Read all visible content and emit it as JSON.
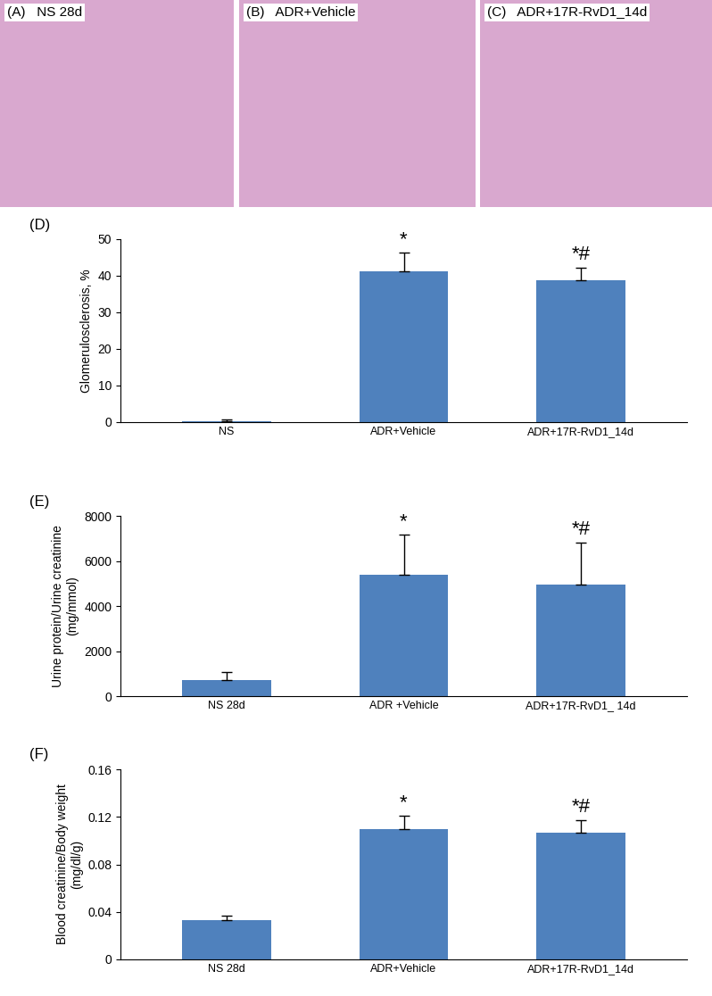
{
  "images": [
    {
      "panel": "(A)",
      "title": "NS 28d"
    },
    {
      "panel": "(B)",
      "title": "ADR+Vehicle"
    },
    {
      "panel": "(C)",
      "title": "ADR+17R-RvD1_14d"
    }
  ],
  "chart_data": [
    {
      "type": "bar",
      "panel": "(D)",
      "y_label": "Glomerulosclerosis, %",
      "categories": [
        "NS",
        "ADR+Vehicle",
        "ADR+17R-RvD1_14d"
      ],
      "values": [
        0.3,
        41.3,
        38.8
      ],
      "errors": [
        0.5,
        5.0,
        3.4
      ],
      "annotations": [
        null,
        "*",
        "*#"
      ],
      "color": "#4f81bd",
      "ylim": [
        0,
        50
      ],
      "yticks": [
        0,
        10,
        20,
        30,
        40,
        50
      ]
    },
    {
      "type": "bar",
      "panel": "(E)",
      "y_label": "Urine protein/Urine creatinine\n(mg/mmol)",
      "categories": [
        "NS 28d",
        "ADR +Vehicle",
        "ADR+17R-RvD1_ 14d"
      ],
      "values": [
        720,
        5370,
        4950
      ],
      "errors": [
        350,
        1800,
        1850
      ],
      "annotations": [
        null,
        "*",
        "*#"
      ],
      "color": "#4f81bd",
      "ylim": [
        0,
        8000
      ],
      "yticks": [
        0,
        2000,
        4000,
        6000,
        8000
      ]
    },
    {
      "type": "bar",
      "panel": "(F)",
      "y_label": "Blood creatinine/Body weight\n(mg/dl/g)",
      "categories": [
        "NS 28d",
        "ADR+Vehicle",
        "ADR+17R-RvD1_14d"
      ],
      "values": [
        0.033,
        0.11,
        0.107
      ],
      "errors": [
        0.004,
        0.011,
        0.01
      ],
      "annotations": [
        null,
        "*",
        "*#"
      ],
      "color": "#4f81bd",
      "ylim": [
        0,
        0.16
      ],
      "yticks": [
        0,
        0.04,
        0.08,
        0.12,
        0.16
      ]
    }
  ]
}
